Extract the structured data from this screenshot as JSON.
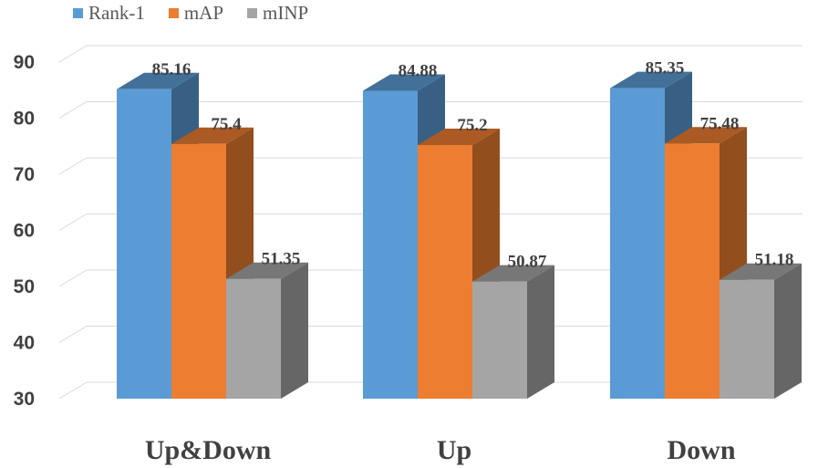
{
  "chart_data": {
    "type": "bar",
    "style": "3d-clustered-column",
    "categories": [
      "Up&Down",
      "Up",
      "Down"
    ],
    "series": [
      {
        "name": "Rank-1",
        "values": [
          85.16,
          84.88,
          85.35
        ],
        "color": "#5b9bd5",
        "label_text": [
          "85.16",
          "84.88",
          "85.35"
        ]
      },
      {
        "name": "mAP",
        "values": [
          75.4,
          75.2,
          75.48
        ],
        "color": "#ed7d31",
        "label_text": [
          "75.4",
          "75.2",
          "75.48"
        ]
      },
      {
        "name": "mINP",
        "values": [
          51.35,
          50.87,
          51.18
        ],
        "color": "#a5a5a5",
        "label_text": [
          "51.35",
          "50.87",
          "51.18"
        ]
      }
    ],
    "ylim": [
      30,
      90
    ],
    "y_ticks": [
      "30",
      "40",
      "50",
      "60",
      "70",
      "80",
      "90"
    ],
    "title": "",
    "xlabel": "",
    "ylabel": "",
    "grid": true,
    "legend_position": "top-left"
  }
}
